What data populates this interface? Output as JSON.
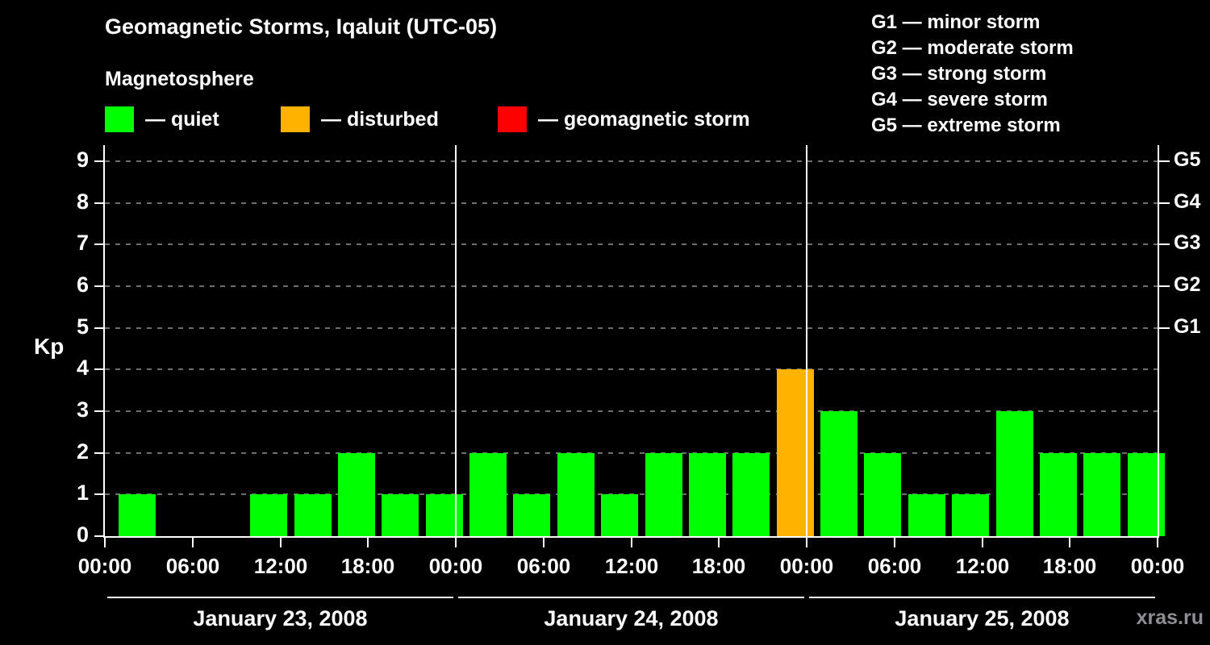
{
  "title": "Geomagnetic Storms, Iqaluit (UTC-05)",
  "subtitle": "Magnetosphere",
  "legend": {
    "items": [
      {
        "label": "— quiet",
        "color": "#00ff00",
        "state": "quiet"
      },
      {
        "label": "— disturbed",
        "color": "#ffb300",
        "state": "disturbed"
      },
      {
        "label": "— geomagnetic storm",
        "color": "#ff0000",
        "state": "storm"
      }
    ]
  },
  "storm_scale_legend": [
    "G1 — minor storm",
    "G2 — moderate storm",
    "G3 — strong storm",
    "G4 — severe storm",
    "G5 — extreme storm"
  ],
  "watermark": "xras.ru",
  "chart_data": {
    "type": "bar",
    "title": "Geomagnetic Storms, Iqaluit (UTC-05)",
    "station": "Iqaluit",
    "timezone": "UTC-05",
    "ylabel": "Kp",
    "ylim": [
      0,
      9
    ],
    "yticks": [
      0,
      1,
      2,
      3,
      4,
      5,
      6,
      7,
      8,
      9
    ],
    "grid": {
      "style": "dashed",
      "levels": [
        1,
        2,
        3,
        4,
        5,
        6,
        7,
        8,
        9
      ]
    },
    "right_scale": [
      {
        "kp": 5,
        "label": "G1"
      },
      {
        "kp": 6,
        "label": "G2"
      },
      {
        "kp": 7,
        "label": "G3"
      },
      {
        "kp": 8,
        "label": "G4"
      },
      {
        "kp": 9,
        "label": "G5"
      }
    ],
    "colors": {
      "quiet": "#00ff00",
      "disturbed": "#ffb300",
      "storm": "#ff0000"
    },
    "x_tick_labels": [
      "00:00",
      "06:00",
      "12:00",
      "18:00",
      "00:00",
      "06:00",
      "12:00",
      "18:00",
      "00:00",
      "06:00",
      "12:00",
      "18:00",
      "00:00"
    ],
    "bar_interval_hours": 3,
    "days": [
      {
        "date": "January 23, 2008",
        "kp": [
          1,
          0,
          0,
          1,
          1,
          2,
          1,
          1
        ],
        "states": [
          "quiet",
          "quiet",
          "quiet",
          "quiet",
          "quiet",
          "quiet",
          "quiet",
          "quiet"
        ]
      },
      {
        "date": "January 24, 2008",
        "kp": [
          2,
          1,
          2,
          1,
          2,
          2,
          2,
          4
        ],
        "states": [
          "quiet",
          "quiet",
          "quiet",
          "quiet",
          "quiet",
          "quiet",
          "quiet",
          "disturbed"
        ]
      },
      {
        "date": "January 25, 2008",
        "kp": [
          3,
          2,
          1,
          1,
          3,
          2,
          2,
          2
        ],
        "states": [
          "quiet",
          "quiet",
          "quiet",
          "quiet",
          "quiet",
          "quiet",
          "quiet",
          "quiet"
        ]
      }
    ]
  }
}
